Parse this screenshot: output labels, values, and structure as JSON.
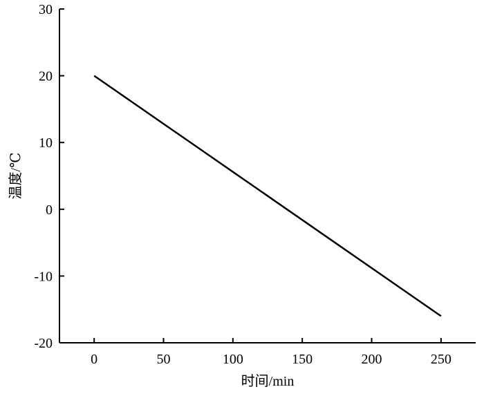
{
  "chart_data": {
    "type": "line",
    "title": "",
    "xlabel": "时间/min",
    "ylabel": "温度/℃",
    "xlim": [
      -25,
      275
    ],
    "ylim": [
      -20,
      30
    ],
    "xticks": [
      0,
      50,
      100,
      150,
      200,
      250
    ],
    "yticks": [
      -20,
      -10,
      0,
      10,
      20,
      30
    ],
    "grid": false,
    "series": [
      {
        "x": [
          0,
          250
        ],
        "y": [
          20,
          -16
        ]
      }
    ],
    "line_color": "#000000",
    "axis_color": "#000000"
  }
}
